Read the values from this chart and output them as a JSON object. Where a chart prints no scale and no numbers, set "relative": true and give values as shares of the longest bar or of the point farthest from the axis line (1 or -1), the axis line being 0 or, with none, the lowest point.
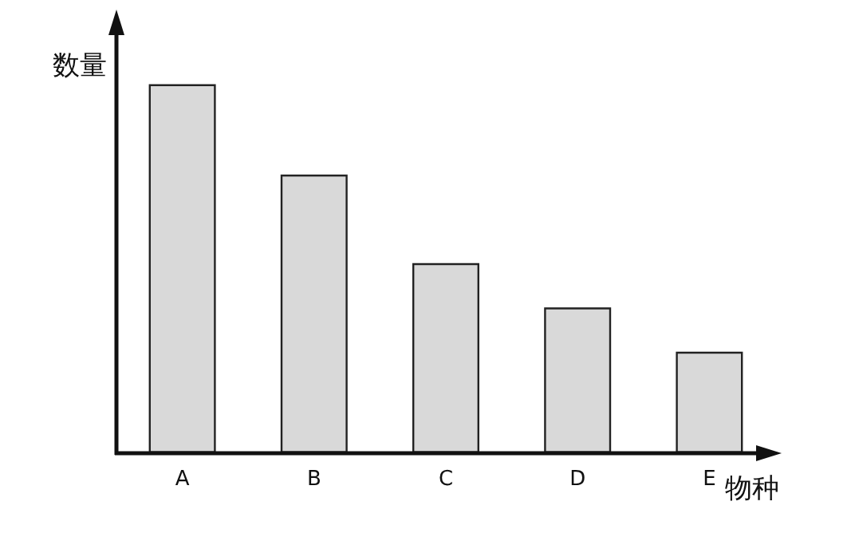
{
  "chart_data": {
    "type": "bar",
    "relative": true,
    "xlabel": "物种",
    "ylabel": "数量",
    "categories": [
      "A",
      "B",
      "C",
      "D",
      "E"
    ],
    "values": [
      1,
      0.755,
      0.515,
      0.395,
      0.275
    ],
    "color": "#d9d9d9",
    "grid": false
  }
}
